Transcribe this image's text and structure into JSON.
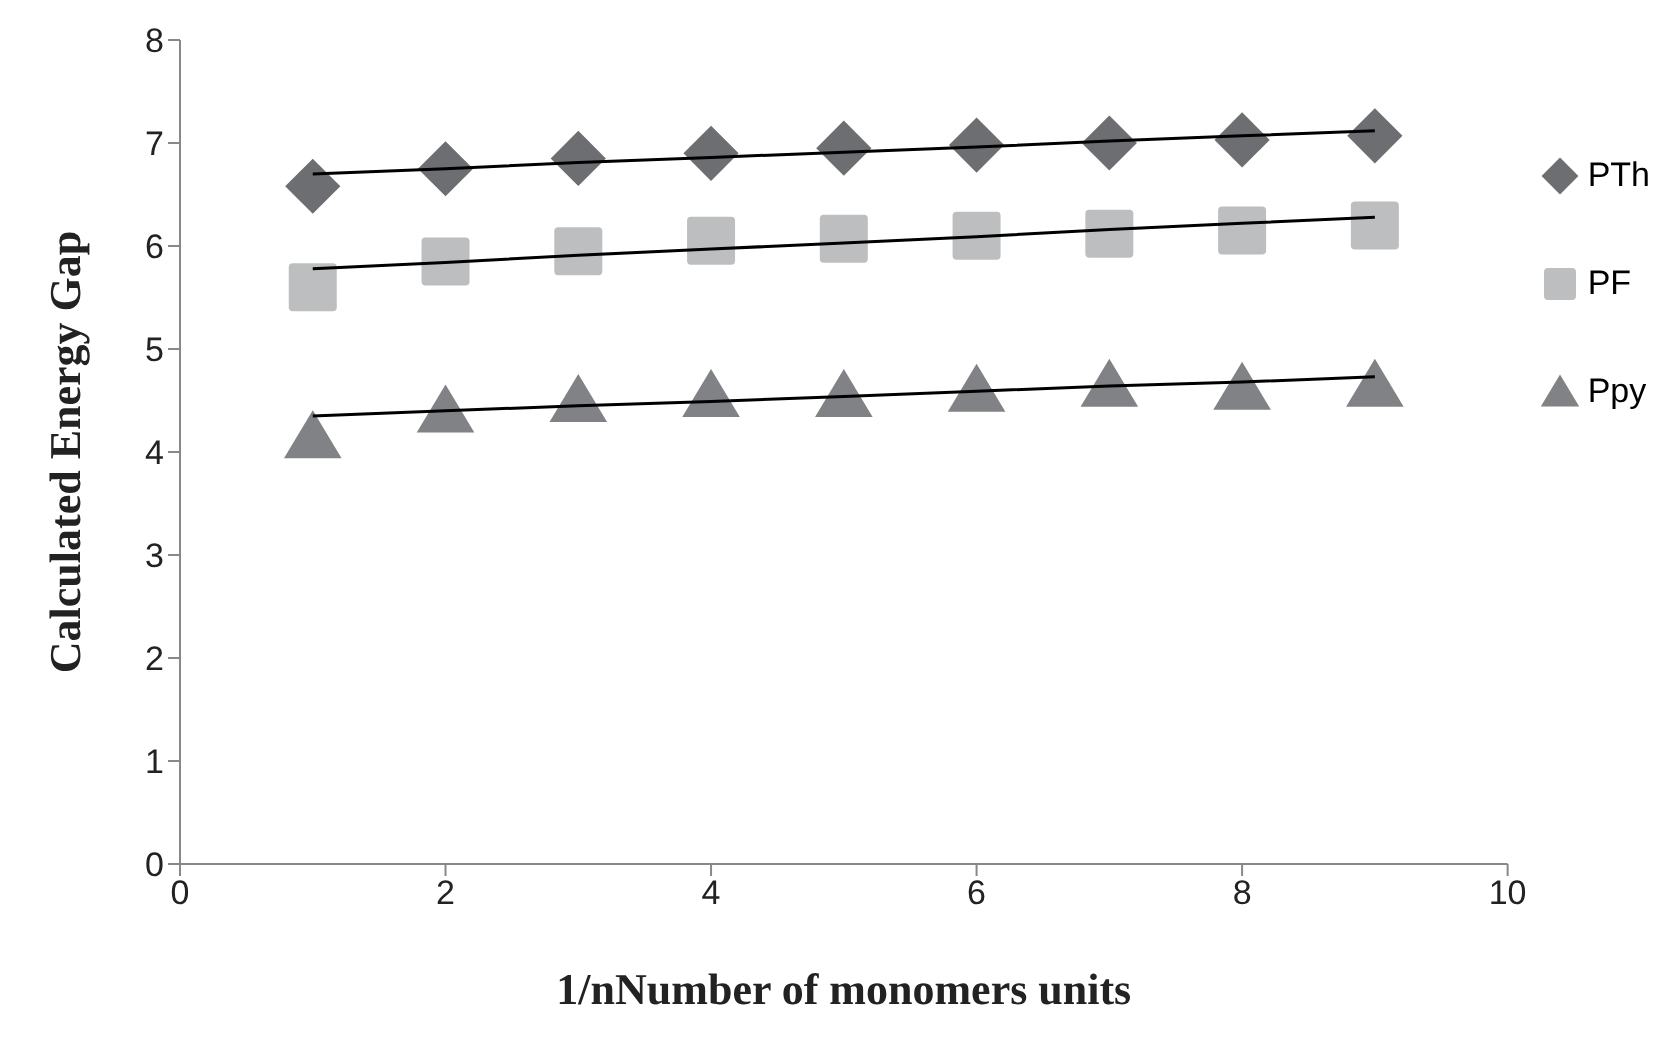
{
  "chart_data": {
    "type": "scatter",
    "xlabel": "1/nNumber of monomers units",
    "ylabel": "Calculated Energy Gap",
    "xlim": [
      0,
      10
    ],
    "xticks": [
      0,
      2,
      4,
      6,
      8,
      10
    ],
    "ylim": [
      0,
      8
    ],
    "yticks": [
      0,
      1,
      2,
      3,
      4,
      5,
      6,
      7,
      8
    ],
    "grid": false,
    "legend": "right",
    "x": [
      1,
      2,
      3,
      4,
      5,
      6,
      7,
      8,
      9
    ],
    "series": [
      {
        "name": "PTh",
        "color": "#6d6e71",
        "marker": "diamond",
        "values": [
          6.58,
          6.75,
          6.85,
          6.9,
          6.95,
          6.98,
          7.0,
          7.03,
          7.07
        ]
      },
      {
        "name": "PF",
        "color": "#bcbec0",
        "marker": "square",
        "values": [
          5.6,
          5.85,
          5.95,
          6.05,
          6.07,
          6.1,
          6.12,
          6.15,
          6.2
        ]
      },
      {
        "name": "Ppy",
        "color": "#808285",
        "marker": "triangle",
        "values": [
          4.15,
          4.4,
          4.5,
          4.55,
          4.55,
          4.6,
          4.65,
          4.62,
          4.65
        ]
      },
      {
        "type": "line",
        "color": "#000000",
        "marker": "none",
        "values": [
          6.7,
          6.75,
          6.81,
          6.86,
          6.91,
          6.96,
          7.02,
          7.07,
          7.12
        ]
      },
      {
        "type": "line",
        "color": "#000000",
        "marker": "none",
        "values": [
          5.78,
          5.84,
          5.91,
          5.97,
          6.03,
          6.09,
          6.16,
          6.22,
          6.28
        ]
      },
      {
        "type": "line",
        "color": "#000000",
        "marker": "none",
        "values": [
          4.35,
          4.4,
          4.45,
          4.49,
          4.54,
          4.59,
          4.64,
          4.68,
          4.73
        ]
      }
    ]
  }
}
